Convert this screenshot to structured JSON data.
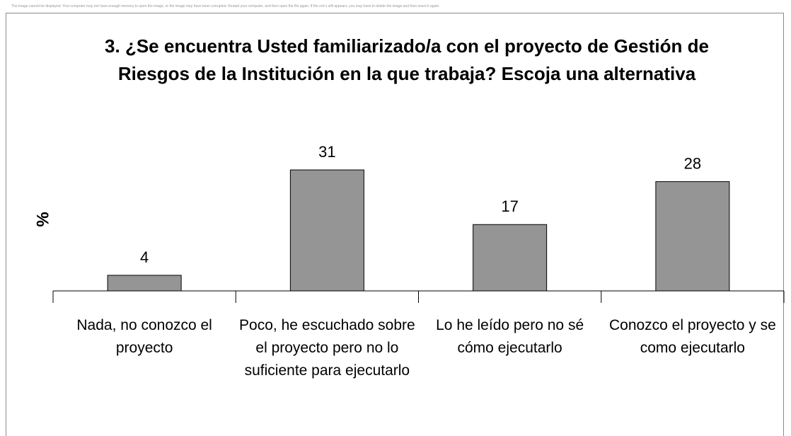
{
  "chart_data": {
    "type": "bar",
    "notice": "The image cannot be displayed. Your computer may not have enough memory to open the image, or the image may have been corrupted. Restart your computer, and then open the file again. If the red x still appears, you may have to delete the image and then insert it again.",
    "title": "3. ¿Se encuentra Usted familiarizado/a con el proyecto de Gestión de Riesgos  de la Institución en la que trabaja? Escoja una alternativa",
    "y_label": "%",
    "categories": [
      "Nada, no conozco el proyecto",
      "Poco, he escuchado sobre el proyecto pero no lo suficiente para ejecutarlo",
      "Lo he leído pero no sé cómo ejecutarlo",
      "Conozco el proyecto y se como ejecutarlo"
    ],
    "values": [
      4,
      31,
      17,
      28
    ],
    "color": "#959595",
    "ylim": [
      0,
      35
    ]
  }
}
